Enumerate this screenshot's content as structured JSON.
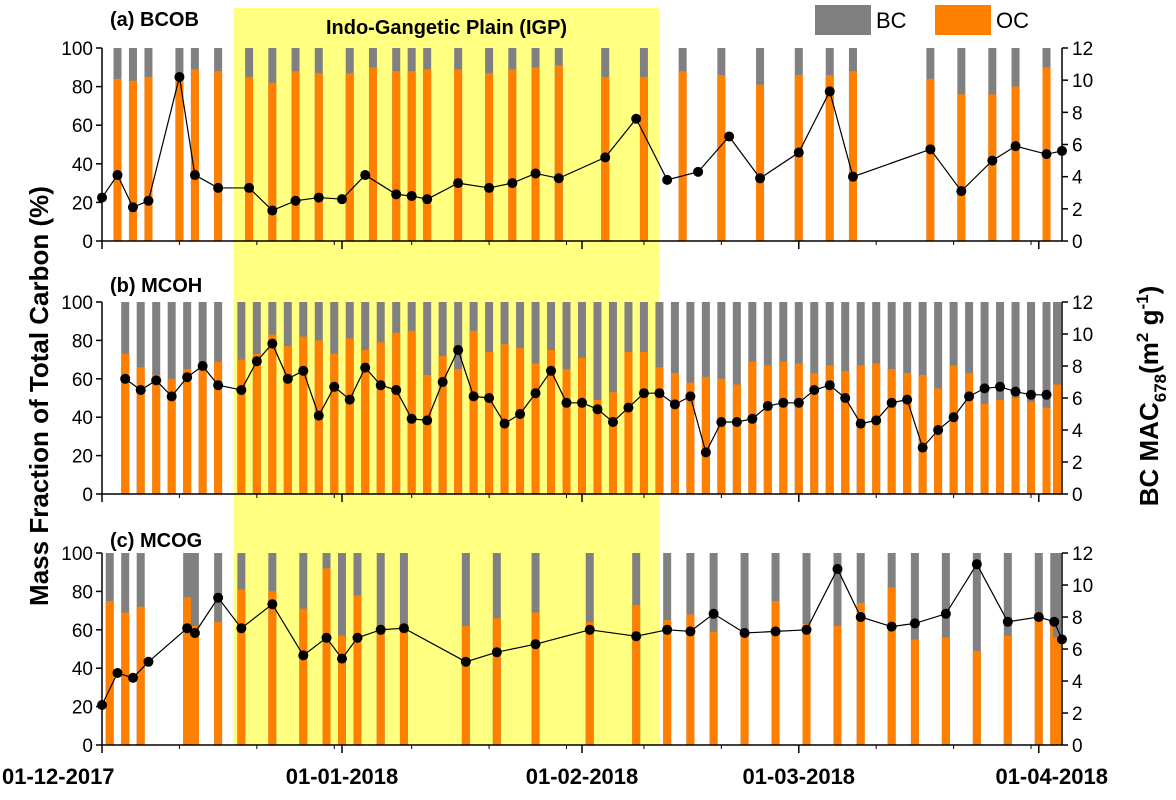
{
  "figure": {
    "ylabel_left": "Mass Fraction of Total Carbon (%)",
    "ylabel_right_main": "BC MAC",
    "ylabel_right_sub": "678",
    "ylabel_right_unit_open": "(m",
    "ylabel_right_unit_sup": "2",
    "ylabel_right_unit_mid": " g",
    "ylabel_right_unit_sup2": "-1",
    "ylabel_right_unit_close": ")",
    "igp_label": "Indo-Gangetic Plain (IGP)",
    "legend": [
      {
        "label": "BC",
        "color": "#808080"
      },
      {
        "label": "OC",
        "color": "#ff8000"
      }
    ],
    "igp_color": "#ffff80",
    "line_color": "#000000",
    "marker_color": "#000000"
  },
  "chart_data": {
    "type": "bar",
    "x_start_day": 0,
    "x_end_day": 124,
    "x_ticks": [
      {
        "day": 0,
        "label": "01-12-2017"
      },
      {
        "day": 31,
        "label": "01-01-2018"
      },
      {
        "day": 62,
        "label": "01-02-2018"
      },
      {
        "day": 90,
        "label": "01-03-2018"
      },
      {
        "day": 121,
        "label": "01-04-2018"
      }
    ],
    "igp_range_days": [
      17,
      72
    ],
    "y_left": {
      "min": 0,
      "max": 100,
      "ticks": [
        0,
        20,
        40,
        60,
        80,
        100
      ]
    },
    "y_right": {
      "min": 0,
      "max": 12,
      "ticks": [
        0,
        2,
        4,
        6,
        8,
        10,
        12
      ]
    },
    "panels": [
      {
        "label": "(a) BCOB",
        "oc": [
          [
            2,
            84
          ],
          [
            4,
            83
          ],
          [
            6,
            85
          ],
          [
            10,
            85
          ],
          [
            12,
            89
          ],
          [
            15,
            88
          ],
          [
            19,
            85
          ],
          [
            22,
            82
          ],
          [
            25,
            88
          ],
          [
            28,
            87
          ],
          [
            32,
            87
          ],
          [
            35,
            90
          ],
          [
            38,
            88
          ],
          [
            40,
            88
          ],
          [
            42,
            89
          ],
          [
            46,
            89
          ],
          [
            50,
            87
          ],
          [
            53,
            89
          ],
          [
            56,
            90
          ],
          [
            59,
            91
          ],
          [
            65,
            85
          ],
          [
            70,
            85
          ],
          [
            75,
            88
          ],
          [
            80,
            86
          ],
          [
            85,
            81
          ],
          [
            90,
            86
          ],
          [
            94,
            86
          ],
          [
            97,
            88
          ],
          [
            107,
            84
          ],
          [
            111,
            76
          ],
          [
            115,
            76
          ],
          [
            118,
            80
          ],
          [
            122,
            90
          ]
        ],
        "mac": [
          [
            0,
            2.7
          ],
          [
            2,
            4.1
          ],
          [
            4,
            2.1
          ],
          [
            6,
            2.5
          ],
          [
            10,
            10.2
          ],
          [
            12,
            4.1
          ],
          [
            15,
            3.3
          ],
          [
            19,
            3.3
          ],
          [
            22,
            1.9
          ],
          [
            25,
            2.5
          ],
          [
            28,
            2.7
          ],
          [
            31,
            2.6
          ],
          [
            34,
            4.1
          ],
          [
            38,
            2.9
          ],
          [
            40,
            2.8
          ],
          [
            42,
            2.6
          ],
          [
            46,
            3.6
          ],
          [
            50,
            3.3
          ],
          [
            53,
            3.6
          ],
          [
            56,
            4.2
          ],
          [
            59,
            3.9
          ],
          [
            65,
            5.2
          ],
          [
            69,
            7.6
          ],
          [
            73,
            3.8
          ],
          [
            77,
            4.3
          ],
          [
            81,
            6.5
          ],
          [
            85,
            3.9
          ],
          [
            90,
            5.5
          ],
          [
            94,
            9.3
          ],
          [
            97,
            4.0
          ],
          [
            107,
            5.7
          ],
          [
            111,
            3.1
          ],
          [
            115,
            5.0
          ],
          [
            118,
            5.9
          ],
          [
            122,
            5.4
          ],
          [
            124,
            5.6
          ]
        ]
      },
      {
        "label": "(b) MCOH",
        "oc": [
          [
            3,
            73
          ],
          [
            5,
            66
          ],
          [
            7,
            62
          ],
          [
            9,
            60
          ],
          [
            11,
            65
          ],
          [
            13,
            68
          ],
          [
            15,
            69
          ],
          [
            18,
            70
          ],
          [
            20,
            73
          ],
          [
            22,
            83
          ],
          [
            24,
            77
          ],
          [
            26,
            82
          ],
          [
            28,
            80
          ],
          [
            30,
            73
          ],
          [
            32,
            81
          ],
          [
            34,
            75
          ],
          [
            36,
            79
          ],
          [
            38,
            84
          ],
          [
            40,
            85
          ],
          [
            42,
            62
          ],
          [
            44,
            72
          ],
          [
            46,
            65
          ],
          [
            48,
            85
          ],
          [
            50,
            74
          ],
          [
            52,
            78
          ],
          [
            54,
            76
          ],
          [
            56,
            68
          ],
          [
            58,
            75
          ],
          [
            60,
            65
          ],
          [
            62,
            71
          ],
          [
            64,
            49
          ],
          [
            66,
            53
          ],
          [
            68,
            74
          ],
          [
            70,
            74
          ],
          [
            72,
            66
          ],
          [
            74,
            63
          ],
          [
            76,
            58
          ],
          [
            78,
            61
          ],
          [
            80,
            60
          ],
          [
            82,
            57
          ],
          [
            84,
            69
          ],
          [
            86,
            67
          ],
          [
            88,
            69
          ],
          [
            90,
            68
          ],
          [
            92,
            63
          ],
          [
            94,
            67
          ],
          [
            96,
            64
          ],
          [
            98,
            67
          ],
          [
            100,
            68
          ],
          [
            102,
            65
          ],
          [
            104,
            63
          ],
          [
            106,
            62
          ],
          [
            108,
            55
          ],
          [
            110,
            67
          ],
          [
            112,
            63
          ],
          [
            114,
            47
          ],
          [
            116,
            49
          ],
          [
            118,
            50
          ],
          [
            120,
            48
          ],
          [
            122,
            45
          ],
          [
            124,
            57
          ]
        ],
        "mac": [
          [
            3,
            7.2
          ],
          [
            5,
            6.5
          ],
          [
            7,
            7.1
          ],
          [
            9,
            6.1
          ],
          [
            11,
            7.3
          ],
          [
            13,
            8.0
          ],
          [
            15,
            6.8
          ],
          [
            18,
            6.5
          ],
          [
            20,
            8.3
          ],
          [
            22,
            9.4
          ],
          [
            24,
            7.2
          ],
          [
            26,
            7.7
          ],
          [
            28,
            4.9
          ],
          [
            30,
            6.7
          ],
          [
            32,
            5.9
          ],
          [
            34,
            7.9
          ],
          [
            36,
            6.8
          ],
          [
            38,
            6.5
          ],
          [
            40,
            4.7
          ],
          [
            42,
            4.6
          ],
          [
            44,
            7.0
          ],
          [
            46,
            9.0
          ],
          [
            48,
            6.1
          ],
          [
            50,
            6.0
          ],
          [
            52,
            4.4
          ],
          [
            54,
            5.0
          ],
          [
            56,
            6.3
          ],
          [
            58,
            7.7
          ],
          [
            60,
            5.7
          ],
          [
            62,
            5.7
          ],
          [
            64,
            5.3
          ],
          [
            66,
            4.5
          ],
          [
            68,
            5.4
          ],
          [
            70,
            6.3
          ],
          [
            72,
            6.3
          ],
          [
            74,
            5.6
          ],
          [
            76,
            6.1
          ],
          [
            78,
            2.6
          ],
          [
            80,
            4.5
          ],
          [
            82,
            4.5
          ],
          [
            84,
            4.7
          ],
          [
            86,
            5.5
          ],
          [
            88,
            5.7
          ],
          [
            90,
            5.7
          ],
          [
            92,
            6.5
          ],
          [
            94,
            6.8
          ],
          [
            96,
            6.0
          ],
          [
            98,
            4.4
          ],
          [
            100,
            4.6
          ],
          [
            102,
            5.7
          ],
          [
            104,
            5.9
          ],
          [
            106,
            2.9
          ],
          [
            108,
            4.0
          ],
          [
            110,
            4.8
          ],
          [
            112,
            6.1
          ],
          [
            114,
            6.6
          ],
          [
            116,
            6.7
          ],
          [
            118,
            6.4
          ],
          [
            120,
            6.2
          ],
          [
            122,
            6.2
          ]
        ]
      },
      {
        "label": "(c) MCOG",
        "oc": [
          [
            1,
            75
          ],
          [
            3,
            69
          ],
          [
            5,
            72
          ],
          [
            11,
            77
          ],
          [
            12,
            62
          ],
          [
            15,
            64
          ],
          [
            18,
            81
          ],
          [
            22,
            80
          ],
          [
            26,
            71
          ],
          [
            29,
            92
          ],
          [
            31,
            57
          ],
          [
            33,
            78
          ],
          [
            36,
            62
          ],
          [
            39,
            63
          ],
          [
            47,
            62
          ],
          [
            51,
            66
          ],
          [
            56,
            69
          ],
          [
            63,
            64
          ],
          [
            69,
            73
          ],
          [
            73,
            65
          ],
          [
            76,
            68
          ],
          [
            79,
            59
          ],
          [
            83,
            60
          ],
          [
            87,
            75
          ],
          [
            91,
            63
          ],
          [
            95,
            62
          ],
          [
            98,
            74
          ],
          [
            102,
            82
          ],
          [
            105,
            55
          ],
          [
            109,
            56
          ],
          [
            113,
            49
          ],
          [
            117,
            57
          ],
          [
            121,
            69
          ],
          [
            123,
            63
          ],
          [
            125,
            56
          ]
        ],
        "mac": [
          [
            0,
            2.5
          ],
          [
            2,
            4.5
          ],
          [
            4,
            4.2
          ],
          [
            6,
            5.2
          ],
          [
            11,
            7.3
          ],
          [
            12,
            7.0
          ],
          [
            15,
            9.2
          ],
          [
            18,
            7.3
          ],
          [
            22,
            8.8
          ],
          [
            26,
            5.6
          ],
          [
            29,
            6.7
          ],
          [
            31,
            5.4
          ],
          [
            33,
            6.7
          ],
          [
            36,
            7.2
          ],
          [
            39,
            7.3
          ],
          [
            47,
            5.2
          ],
          [
            51,
            5.8
          ],
          [
            56,
            6.3
          ],
          [
            63,
            7.2
          ],
          [
            69,
            6.8
          ],
          [
            73,
            7.2
          ],
          [
            76,
            7.1
          ],
          [
            79,
            8.2
          ],
          [
            83,
            7.0
          ],
          [
            87,
            7.1
          ],
          [
            91,
            7.2
          ],
          [
            95,
            11.0
          ],
          [
            98,
            8.0
          ],
          [
            102,
            7.4
          ],
          [
            105,
            7.6
          ],
          [
            109,
            8.2
          ],
          [
            113,
            11.3
          ],
          [
            117,
            7.7
          ],
          [
            121,
            8.0
          ],
          [
            123,
            7.7
          ],
          [
            125,
            6.6
          ]
        ]
      }
    ]
  }
}
